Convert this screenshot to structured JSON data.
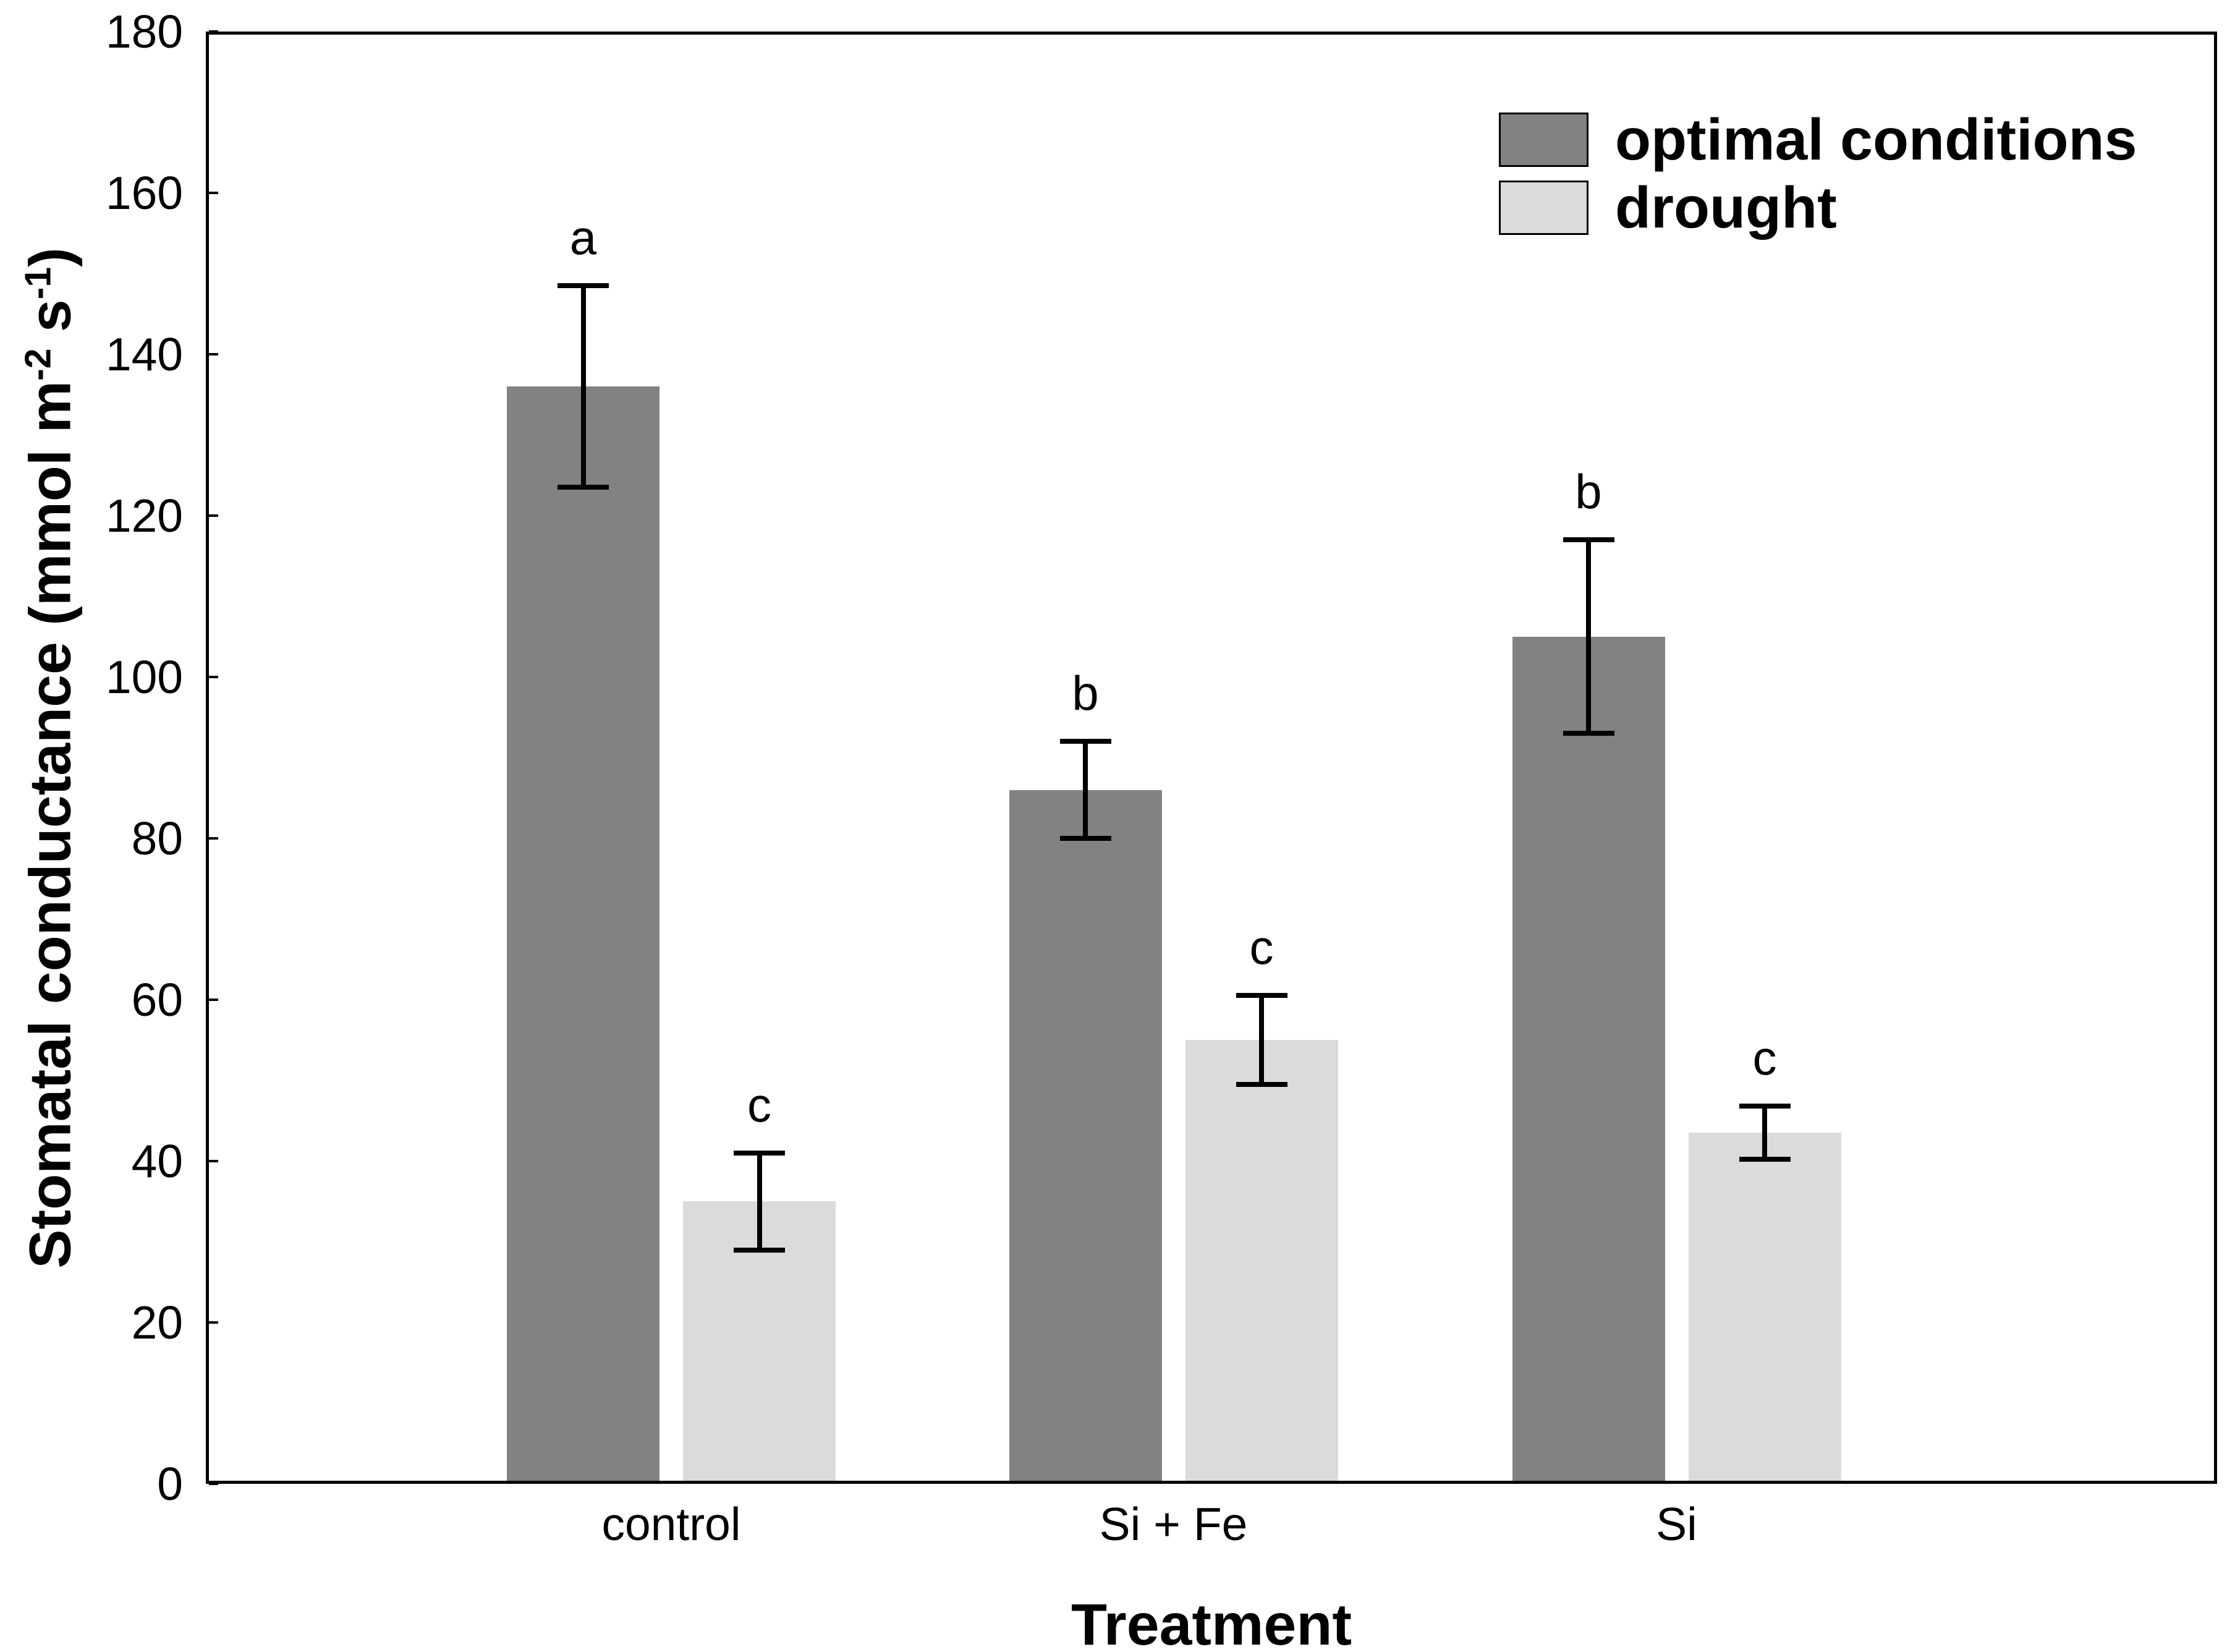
{
  "chart_data": {
    "type": "bar",
    "title": "",
    "xlabel": "Treatment",
    "ylabel_text": "Stomatal conductance (mmol m⁻² s⁻¹)",
    "ylabel_parts": {
      "pre": "Stomatal conductance (mmol m",
      "sup1": "-2",
      "mid": " s",
      "sup2": "-1",
      "post": ")"
    },
    "categories": [
      "control",
      "Si + Fe",
      "Si"
    ],
    "series": [
      {
        "name": "optimal conditions",
        "color": "#828282",
        "values": [
          136,
          86,
          105
        ],
        "errors": [
          12.5,
          6,
          12
        ],
        "letters": [
          "a",
          "b",
          "b"
        ]
      },
      {
        "name": "drought",
        "color": "#DBDBDB",
        "values": [
          35,
          55,
          43.5
        ],
        "errors": [
          6,
          5.5,
          3.3
        ],
        "letters": [
          "c",
          "c",
          "c"
        ]
      }
    ],
    "ylim": [
      0,
      180
    ],
    "ytick_step": 20,
    "yticks": [
      0,
      20,
      40,
      60,
      80,
      100,
      120,
      140,
      160,
      180
    ],
    "grid": false,
    "legend_position": "top-right",
    "error_bar_style": "caps-both-ends",
    "axis_color": "#000000",
    "background_color": "#ffffff"
  }
}
